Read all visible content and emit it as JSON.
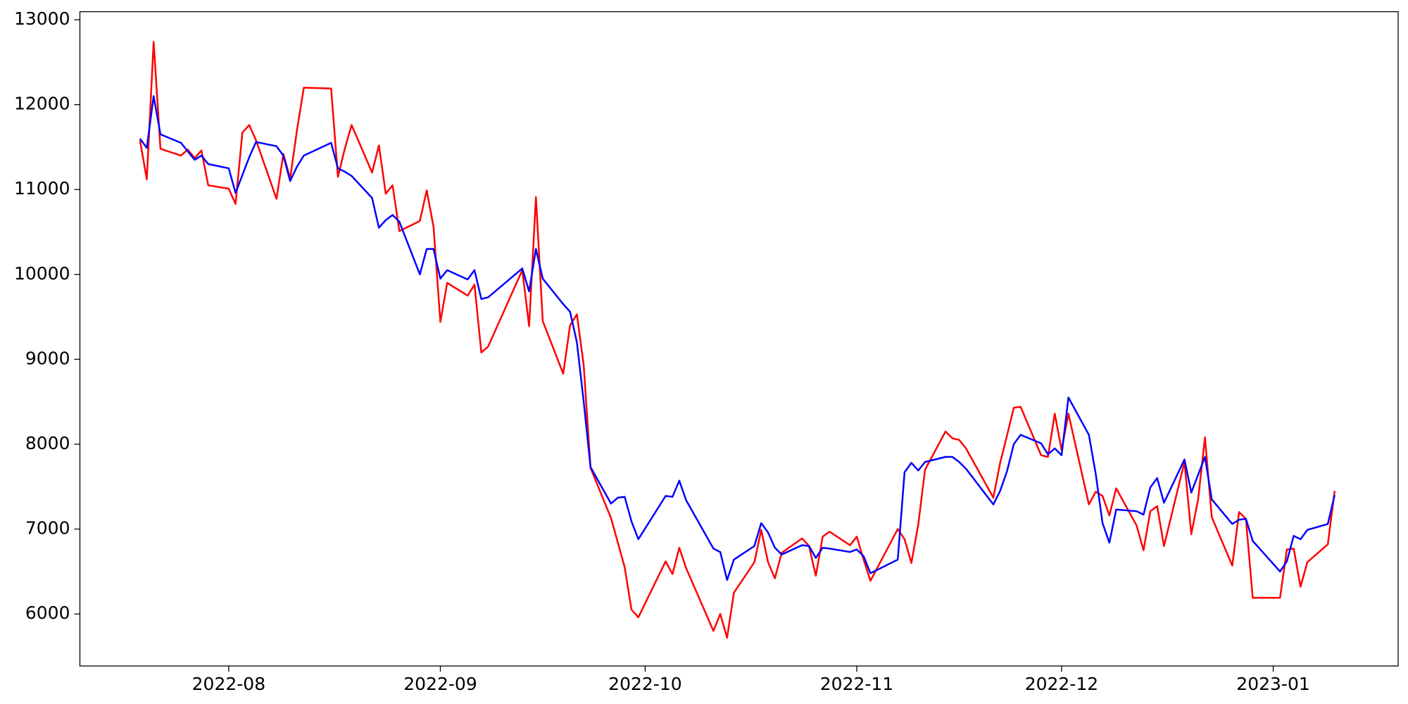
{
  "chart_data": {
    "type": "line",
    "x": [
      18,
      19,
      20,
      21,
      24,
      25,
      26,
      27,
      28,
      31,
      32,
      33,
      34,
      35,
      38,
      39,
      40,
      41,
      42,
      46,
      47,
      48,
      49,
      52,
      53,
      54,
      55,
      56,
      59,
      60,
      61,
      62,
      63,
      66,
      67,
      68,
      69,
      74,
      75,
      76,
      77,
      80,
      81,
      82,
      83,
      84,
      87,
      88,
      89,
      90,
      91,
      95,
      96,
      97,
      98,
      102,
      103,
      104,
      105,
      108,
      109,
      110,
      111,
      112,
      115,
      116,
      117,
      118,
      119,
      122,
      123,
      124,
      125,
      129,
      130,
      131,
      132,
      133,
      136,
      137,
      138,
      139,
      143,
      144,
      145,
      146,
      147,
      150,
      151,
      152,
      153,
      154,
      157,
      158,
      159,
      160,
      161,
      164,
      165,
      166,
      167,
      168,
      171,
      172,
      173,
      174,
      175,
      178,
      179,
      180,
      181,
      185,
      186,
      187,
      188,
      189,
      192,
      193
    ],
    "series": [
      {
        "color": "#ff0000",
        "values": [
          11580,
          11120,
          12740,
          11480,
          11400,
          11470,
          11370,
          11460,
          11050,
          11010,
          10830,
          11670,
          11760,
          11580,
          10890,
          11420,
          11130,
          11700,
          12200,
          12190,
          11150,
          11480,
          11760,
          11200,
          11520,
          10950,
          11050,
          10510,
          10630,
          10990,
          10560,
          9440,
          9900,
          9750,
          9880,
          9080,
          9150,
          10050,
          9390,
          10910,
          9450,
          8830,
          9400,
          9530,
          8930,
          7720,
          7130,
          6840,
          6550,
          6050,
          5960,
          6620,
          6470,
          6780,
          6540,
          5800,
          6000,
          5720,
          6250,
          6610,
          6990,
          6610,
          6420,
          6720,
          6890,
          6800,
          6450,
          6910,
          6970,
          6810,
          6910,
          6640,
          6390,
          7000,
          6880,
          6600,
          7050,
          7700,
          8150,
          8070,
          8050,
          7950,
          7370,
          7780,
          8100,
          8430,
          8440,
          7870,
          7850,
          8360,
          7930,
          8360,
          7290,
          7440,
          7390,
          7160,
          7480,
          7040,
          6750,
          7210,
          7270,
          6800,
          7790,
          6940,
          7350,
          8080,
          7140,
          6570,
          7200,
          7120,
          6190,
          6190,
          6760,
          6770,
          6320,
          6610,
          6820,
          7450
        ]
      },
      {
        "color": "#0000ff",
        "values": [
          11600,
          11490,
          12100,
          11650,
          11550,
          11450,
          11350,
          11400,
          11300,
          11250,
          10960,
          11170,
          11380,
          11560,
          11510,
          11400,
          11100,
          11270,
          11400,
          11550,
          11250,
          11210,
          11160,
          10900,
          10550,
          10640,
          10700,
          10620,
          10000,
          10300,
          10300,
          9950,
          10050,
          9940,
          10050,
          9710,
          9730,
          10070,
          9800,
          10300,
          9950,
          9650,
          9560,
          9200,
          8500,
          7730,
          7300,
          7370,
          7380,
          7090,
          6880,
          7390,
          7380,
          7570,
          7340,
          6770,
          6730,
          6400,
          6640,
          6800,
          7070,
          6960,
          6780,
          6700,
          6810,
          6800,
          6660,
          6780,
          6770,
          6730,
          6760,
          6680,
          6480,
          6640,
          7670,
          7780,
          7690,
          7790,
          7850,
          7850,
          7790,
          7710,
          7290,
          7450,
          7680,
          8000,
          8110,
          8010,
          7880,
          7950,
          7870,
          8550,
          8110,
          7650,
          7070,
          6840,
          7230,
          7210,
          7170,
          7490,
          7600,
          7310,
          7820,
          7430,
          7640,
          7850,
          7350,
          7060,
          7110,
          7120,
          6860,
          6500,
          6620,
          6920,
          6880,
          6990,
          7060,
          7400
        ]
      }
    ],
    "xlim": [
      9.2,
      202.3
    ],
    "xticks": [
      {
        "value": 31,
        "label": "2022-08"
      },
      {
        "value": 62,
        "label": "2022-09"
      },
      {
        "value": 92,
        "label": "2022-10"
      },
      {
        "value": 123,
        "label": "2022-11"
      },
      {
        "value": 153,
        "label": "2022-12"
      },
      {
        "value": 184,
        "label": "2023-01"
      }
    ],
    "ylim": [
      5387,
      13095
    ],
    "yticks": [
      6000,
      7000,
      8000,
      9000,
      10000,
      11000,
      12000,
      13000
    ]
  }
}
